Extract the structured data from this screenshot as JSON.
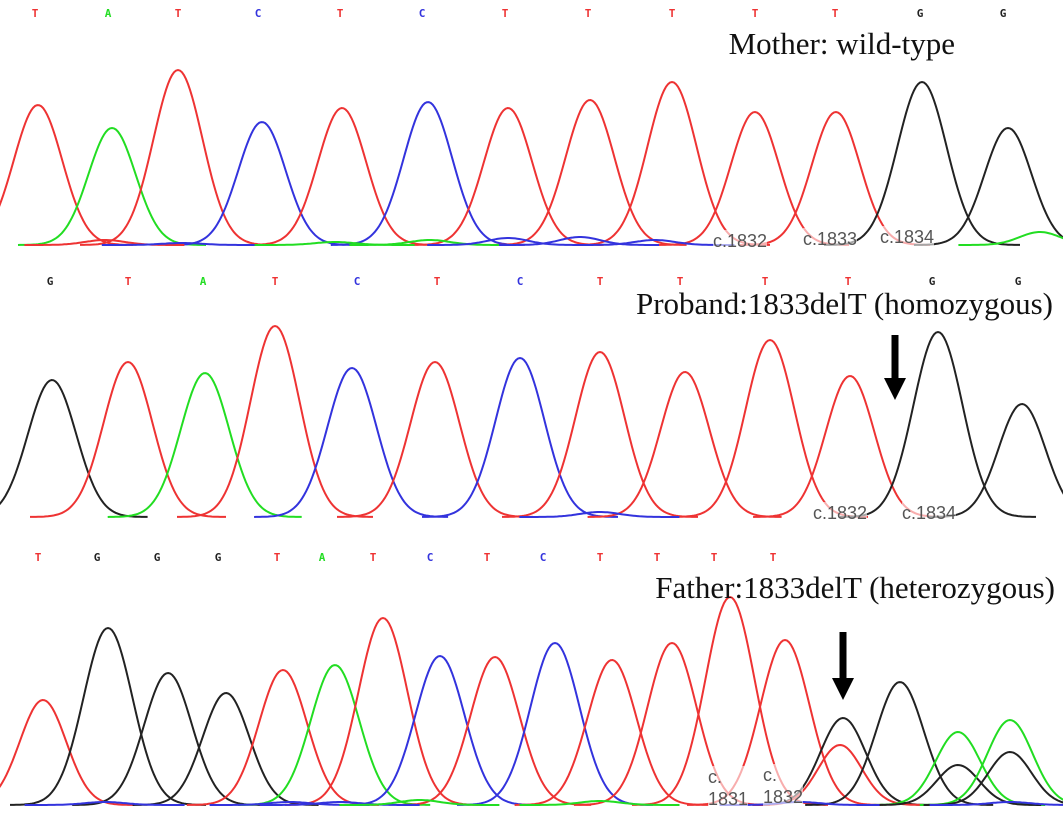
{
  "panels": [
    {
      "title": "Mother: wild-type",
      "bases": [
        "T",
        "A",
        "T",
        "C",
        "T",
        "C",
        "T",
        "T",
        "T",
        "T",
        "T",
        "G",
        "G"
      ],
      "positions": [
        "c.1832",
        "c.1833",
        "c.1834"
      ]
    },
    {
      "title": "Proband:1833delT (homozygous)",
      "bases": [
        "G",
        "T",
        "A",
        "T",
        "C",
        "T",
        "C",
        "T",
        "T",
        "T",
        "T",
        "G",
        "G"
      ],
      "positions": [
        "c.1832",
        "c.1834"
      ]
    },
    {
      "title": "Father:1833delT (heterozygous)",
      "bases": [
        "T",
        "G",
        "G",
        "G",
        "T",
        "A",
        "T",
        "C",
        "T",
        "C",
        "T",
        "T",
        "T",
        "T"
      ],
      "positions": [
        "c. 1831",
        "c. 1832"
      ]
    }
  ]
}
